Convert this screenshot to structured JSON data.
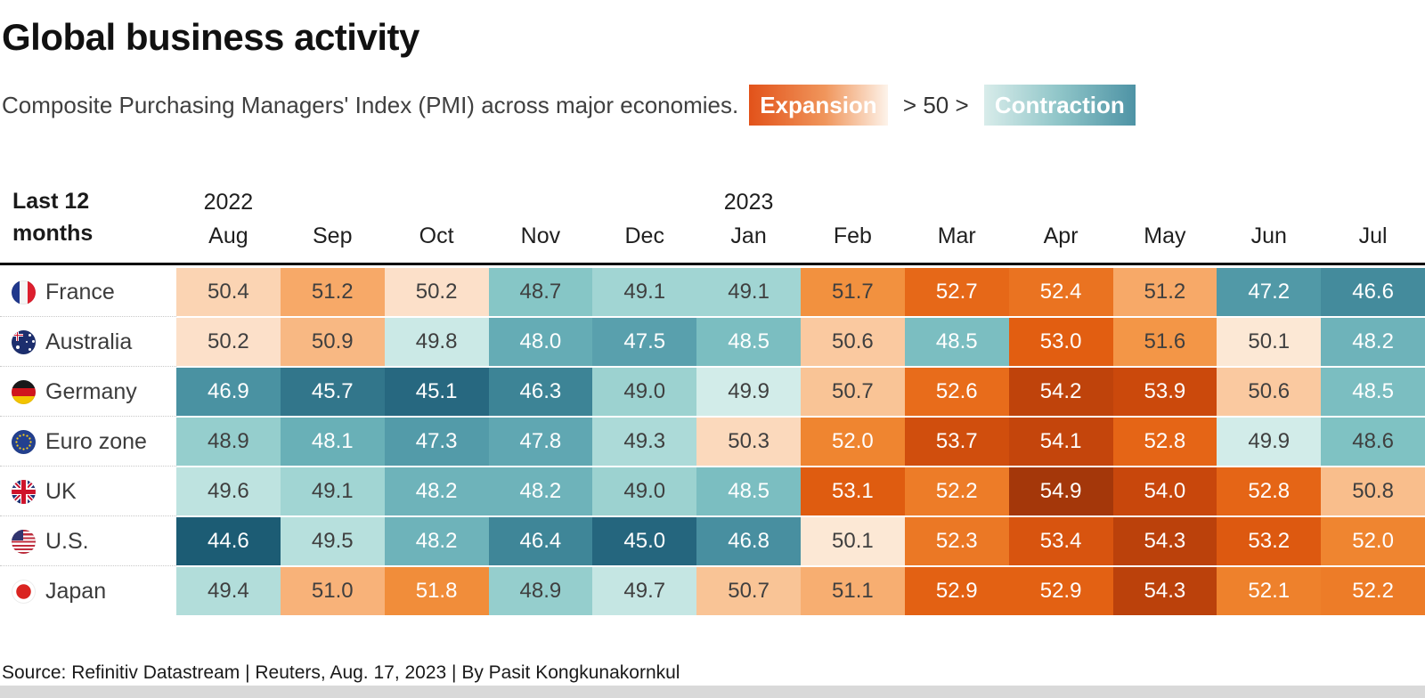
{
  "header": {
    "title": "Global business activity",
    "subtitle": "Composite Purchasing Managers' Index (PMI) across major economies.",
    "legend": {
      "expansion_label": "Expansion",
      "middle_label": " > 50 > ",
      "contraction_label": "Contraction",
      "expansion_gradient": [
        "#e2521a",
        "#f0965c",
        "#fdf3ea"
      ],
      "contraction_gradient": [
        "#d8ecea",
        "#8fc5c8",
        "#4e93a5"
      ]
    }
  },
  "table": {
    "corner_line1": "Last 12",
    "corner_line2": "months"
  },
  "chart_data": {
    "type": "heatmap",
    "title": "Global business activity",
    "subtitle": "Composite Purchasing Managers' Index (PMI) across major economies.",
    "legend_note": "Expansion > 50 > Contraction",
    "months": [
      "Aug",
      "Sep",
      "Oct",
      "Nov",
      "Dec",
      "Jan",
      "Feb",
      "Mar",
      "Apr",
      "May",
      "Jun",
      "Jul"
    ],
    "year_labels": [
      {
        "label": "2022",
        "month_index": 0
      },
      {
        "label": "2023",
        "month_index": 5
      }
    ],
    "rows": [
      {
        "country": "France",
        "flag": "france",
        "values": [
          50.4,
          51.2,
          50.2,
          48.7,
          49.1,
          49.1,
          51.7,
          52.7,
          52.4,
          51.2,
          47.2,
          46.6
        ]
      },
      {
        "country": "Australia",
        "flag": "australia",
        "values": [
          50.2,
          50.9,
          49.8,
          48.0,
          47.5,
          48.5,
          50.6,
          48.5,
          53.0,
          51.6,
          50.1,
          48.2
        ]
      },
      {
        "country": "Germany",
        "flag": "germany",
        "values": [
          46.9,
          45.7,
          45.1,
          46.3,
          49.0,
          49.9,
          50.7,
          52.6,
          54.2,
          53.9,
          50.6,
          48.5
        ]
      },
      {
        "country": "Euro zone",
        "flag": "euro-zone",
        "values": [
          48.9,
          48.1,
          47.3,
          47.8,
          49.3,
          50.3,
          52.0,
          53.7,
          54.1,
          52.8,
          49.9,
          48.6
        ]
      },
      {
        "country": "UK",
        "flag": "uk",
        "values": [
          49.6,
          49.1,
          48.2,
          48.2,
          49.0,
          48.5,
          53.1,
          52.2,
          54.9,
          54.0,
          52.8,
          50.8
        ]
      },
      {
        "country": "U.S.",
        "flag": "us",
        "values": [
          44.6,
          49.5,
          48.2,
          46.4,
          45.0,
          46.8,
          50.1,
          52.3,
          53.4,
          54.3,
          53.2,
          52.0
        ]
      },
      {
        "country": "Japan",
        "flag": "japan",
        "values": [
          49.4,
          51.0,
          51.8,
          48.9,
          49.7,
          50.7,
          51.1,
          52.9,
          52.9,
          54.3,
          52.1,
          52.2
        ]
      }
    ],
    "value_range": [
      44.6,
      54.9
    ],
    "midpoint": 50,
    "color_scale": {
      "contraction_stops": [
        [
          44.5,
          "#1a5972"
        ],
        [
          45.0,
          "#25667e"
        ],
        [
          46.0,
          "#377d90"
        ],
        [
          47.0,
          "#4c94a4"
        ],
        [
          48.0,
          "#65acb5"
        ],
        [
          48.6,
          "#7fc2c3"
        ],
        [
          49.0,
          "#9cd2d0"
        ],
        [
          49.5,
          "#b7e0dd"
        ],
        [
          50.0,
          "#d9efec"
        ]
      ],
      "expansion_stops": [
        [
          50.0,
          "#fdefe2"
        ],
        [
          50.3,
          "#fbd9bc"
        ],
        [
          50.7,
          "#f9c496"
        ],
        [
          51.0,
          "#f8b279"
        ],
        [
          51.3,
          "#f6a560"
        ],
        [
          51.7,
          "#f2913f"
        ],
        [
          52.0,
          "#ef8530"
        ],
        [
          52.5,
          "#e96f1d"
        ],
        [
          53.0,
          "#e25e11"
        ],
        [
          53.5,
          "#d5520e"
        ],
        [
          54.0,
          "#c8470c"
        ],
        [
          54.5,
          "#b23d0a"
        ],
        [
          55.0,
          "#a1360a"
        ]
      ]
    },
    "text_color_rule": {
      "white_if_lte": 48.5,
      "white_if_gte": 51.8,
      "dark_color": "#3f3f3f",
      "light_color": "#ffffff"
    }
  },
  "footer": {
    "source": "Source: Refinitiv Datastream | Reuters, Aug. 17, 2023 | By Pasit Kongkunakornkul"
  }
}
